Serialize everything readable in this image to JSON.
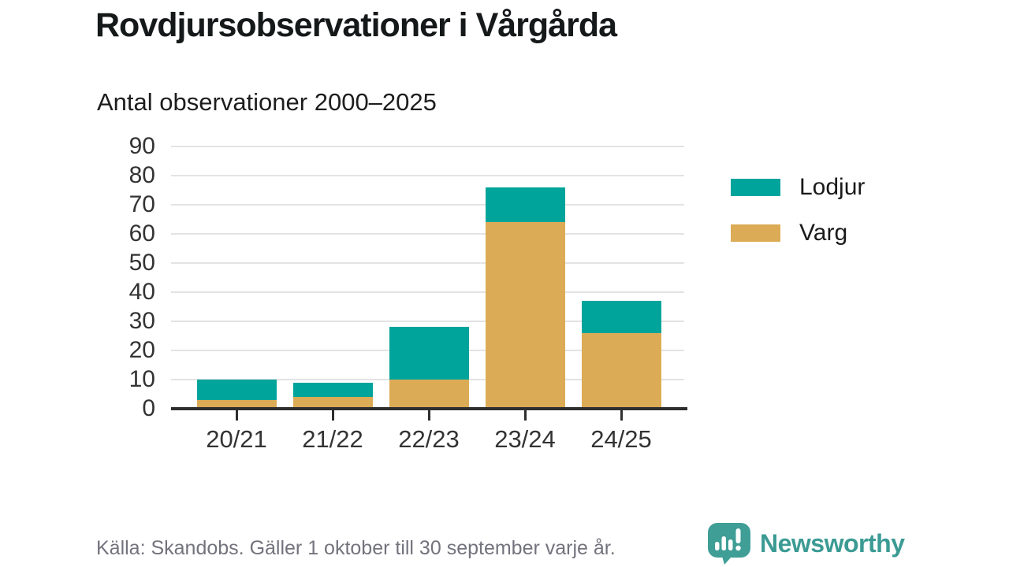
{
  "header": {
    "title": "Rovdjursobservationer i Vårgårda",
    "subtitle": "Antal observationer 2000–2025"
  },
  "chart_data": {
    "type": "bar",
    "stacked": true,
    "title": "Rovdjursobservationer i Vårgårda",
    "subtitle": "Antal observationer 2000–2025",
    "categories": [
      "20/21",
      "21/22",
      "22/23",
      "23/24",
      "24/25"
    ],
    "series": [
      {
        "name": "Varg",
        "color": "#dcab55",
        "values": [
          3,
          4,
          10,
          64,
          26
        ]
      },
      {
        "name": "Lodjur",
        "color": "#00a49b",
        "values": [
          7,
          5,
          18,
          12,
          11
        ]
      }
    ],
    "totals": [
      10,
      9,
      28,
      76,
      37
    ],
    "legend": [
      "Lodjur",
      "Varg"
    ],
    "legend_position": "right",
    "xlabel": "",
    "ylabel": "",
    "ylim": [
      0,
      90
    ],
    "ytick_step": 10,
    "grid": true
  },
  "colors": {
    "lodjur": "#00a49b",
    "varg": "#dcab55",
    "gridline": "#e3e3e3",
    "axis": "#2e2e2e",
    "brand_teal": "#3b9b94"
  },
  "footer": {
    "source": "Källa: Skandobs. Gäller 1 oktober till 30 september varje år.",
    "brand": "Newsworthy"
  }
}
